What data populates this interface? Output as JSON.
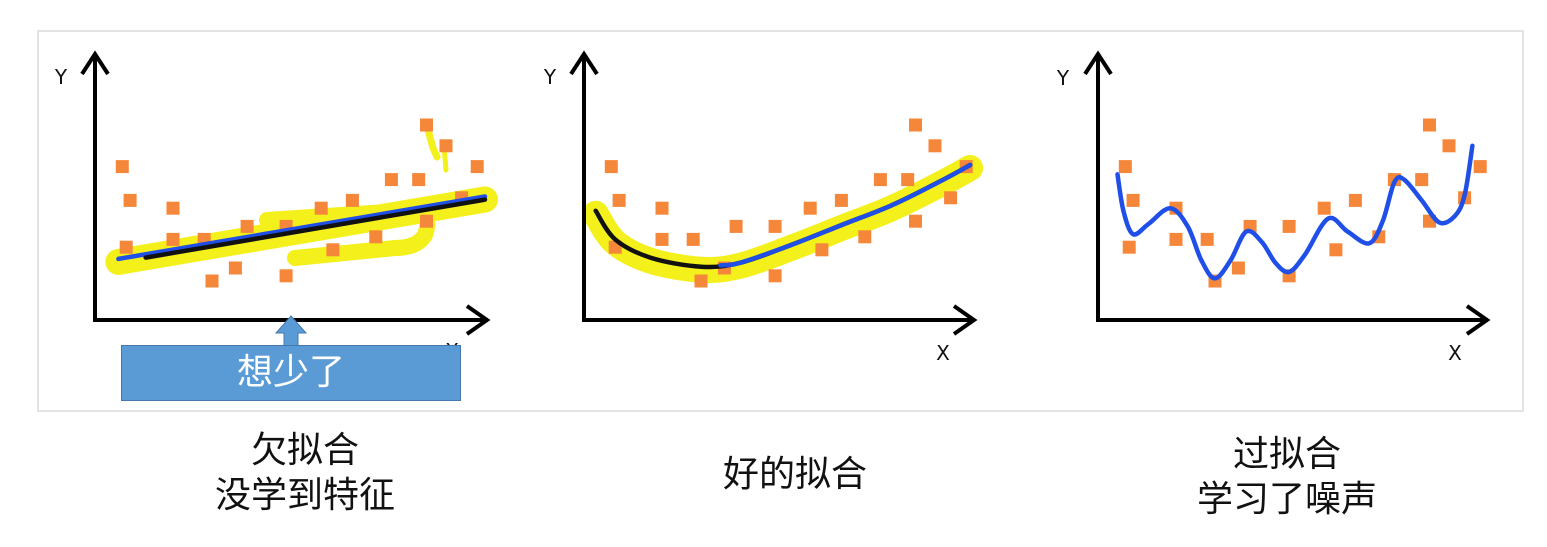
{
  "colors": {
    "point": "#f4873a",
    "highlight": "#f3f01c",
    "callout": "#5b9bd5",
    "axis": "#000000"
  },
  "chart_data": [
    {
      "type": "scatter",
      "xlabel": "X",
      "ylabel": "Y",
      "xlim": [
        0,
        10
      ],
      "ylim": [
        0,
        10
      ],
      "grid": false,
      "points": [
        [
          0.7,
          5.9
        ],
        [
          0.9,
          4.6
        ],
        [
          2.0,
          4.3
        ],
        [
          0.8,
          2.8
        ],
        [
          2.0,
          3.1
        ],
        [
          2.8,
          3.1
        ],
        [
          3.0,
          1.5
        ],
        [
          3.6,
          2.0
        ],
        [
          3.9,
          3.6
        ],
        [
          4.9,
          1.7
        ],
        [
          4.9,
          3.6
        ],
        [
          5.8,
          4.3
        ],
        [
          6.6,
          4.6
        ],
        [
          6.1,
          2.7
        ],
        [
          7.2,
          3.2
        ],
        [
          7.6,
          5.4
        ],
        [
          8.3,
          5.4
        ],
        [
          8.5,
          7.5
        ],
        [
          9.0,
          6.7
        ],
        [
          9.8,
          5.9
        ],
        [
          9.4,
          4.7
        ],
        [
          8.5,
          3.8
        ]
      ],
      "fit_segments": [
        {
          "color": "#1f4fe6",
          "points": [
            [
              0.6,
              2.35
            ],
            [
              10.0,
              4.75
            ]
          ]
        },
        {
          "color": "#111111",
          "points": [
            [
              1.3,
              2.4
            ],
            [
              10.0,
              4.63
            ]
          ]
        }
      ],
      "highlighted": true,
      "annotation": "想少了",
      "caption": [
        "欠拟合",
        "没学到特征"
      ]
    },
    {
      "type": "scatter",
      "xlabel": "X",
      "ylabel": "Y",
      "xlim": [
        0,
        10
      ],
      "ylim": [
        0,
        10
      ],
      "grid": false,
      "points": [
        [
          0.7,
          5.9
        ],
        [
          0.9,
          4.6
        ],
        [
          2.0,
          4.3
        ],
        [
          0.8,
          2.8
        ],
        [
          2.0,
          3.1
        ],
        [
          2.8,
          3.1
        ],
        [
          3.0,
          1.5
        ],
        [
          3.6,
          2.0
        ],
        [
          3.9,
          3.6
        ],
        [
          4.9,
          1.7
        ],
        [
          4.9,
          3.6
        ],
        [
          5.8,
          4.3
        ],
        [
          6.6,
          4.6
        ],
        [
          6.1,
          2.7
        ],
        [
          7.2,
          3.2
        ],
        [
          7.6,
          5.4
        ],
        [
          8.3,
          5.4
        ],
        [
          8.5,
          7.5
        ],
        [
          9.0,
          6.7
        ],
        [
          9.8,
          5.9
        ],
        [
          9.4,
          4.7
        ],
        [
          8.5,
          3.8
        ]
      ],
      "fit_segments": [
        {
          "color": "#111111",
          "points": [
            [
              0.3,
              4.2
            ],
            [
              0.8,
              3.1
            ],
            [
              1.7,
              2.4
            ],
            [
              3.0,
              2.05
            ],
            [
              4.0,
              2.2
            ],
            [
              5.3,
              2.88
            ],
            [
              6.6,
              3.65
            ],
            [
              7.9,
              4.42
            ],
            [
              9.1,
              5.31
            ],
            [
              9.9,
              5.96
            ]
          ]
        },
        {
          "color": "#1f4fe6",
          "points": [
            [
              3.5,
              2.1
            ],
            [
              4.0,
              2.2
            ],
            [
              5.3,
              2.88
            ],
            [
              6.6,
              3.65
            ],
            [
              7.9,
              4.42
            ],
            [
              9.1,
              5.31
            ],
            [
              9.9,
              5.96
            ]
          ]
        }
      ],
      "highlighted": true,
      "caption": [
        "好的拟合"
      ]
    },
    {
      "type": "scatter",
      "xlabel": "X",
      "ylabel": "Y",
      "xlim": [
        0,
        10
      ],
      "ylim": [
        0,
        10
      ],
      "grid": false,
      "points": [
        [
          0.7,
          5.9
        ],
        [
          0.9,
          4.6
        ],
        [
          2.0,
          4.3
        ],
        [
          0.8,
          2.8
        ],
        [
          2.0,
          3.1
        ],
        [
          2.8,
          3.1
        ],
        [
          3.0,
          1.5
        ],
        [
          3.6,
          2.0
        ],
        [
          3.9,
          3.6
        ],
        [
          4.9,
          1.7
        ],
        [
          4.9,
          3.6
        ],
        [
          5.8,
          4.3
        ],
        [
          6.6,
          4.6
        ],
        [
          6.1,
          2.7
        ],
        [
          7.2,
          3.2
        ],
        [
          7.6,
          5.4
        ],
        [
          8.3,
          5.4
        ],
        [
          8.5,
          7.5
        ],
        [
          9.0,
          6.7
        ],
        [
          9.8,
          5.9
        ],
        [
          9.4,
          4.7
        ],
        [
          8.5,
          3.8
        ]
      ],
      "fit_segments": [
        {
          "color": "#1f4fe6",
          "points": [
            [
              0.5,
              5.6
            ],
            [
              0.65,
              4.2
            ],
            [
              0.9,
              3.3
            ],
            [
              1.3,
              3.7
            ],
            [
              1.85,
              4.3
            ],
            [
              2.3,
              3.6
            ],
            [
              2.65,
              2.3
            ],
            [
              3.0,
              1.6
            ],
            [
              3.4,
              2.3
            ],
            [
              3.8,
              3.4
            ],
            [
              4.2,
              3.0
            ],
            [
              4.55,
              2.2
            ],
            [
              4.9,
              1.85
            ],
            [
              5.3,
              2.5
            ],
            [
              5.9,
              3.9
            ],
            [
              6.4,
              3.4
            ],
            [
              6.95,
              2.95
            ],
            [
              7.3,
              3.8
            ],
            [
              7.6,
              5.3
            ],
            [
              7.85,
              5.4
            ],
            [
              8.3,
              4.6
            ],
            [
              8.75,
              3.75
            ],
            [
              9.15,
              4.0
            ],
            [
              9.4,
              4.8
            ],
            [
              9.6,
              6.7
            ]
          ]
        }
      ],
      "highlighted": false,
      "caption": [
        "过拟合",
        "学习了噪声"
      ]
    }
  ]
}
